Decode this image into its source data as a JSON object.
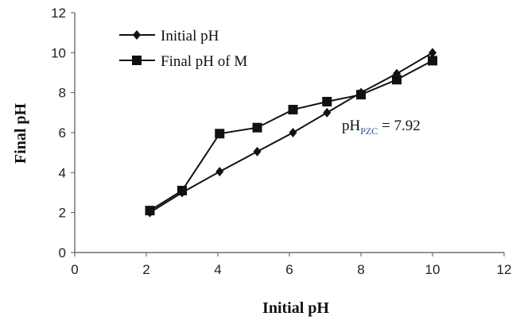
{
  "chart_data": {
    "type": "line",
    "xlabel": "Initial pH",
    "ylabel": "Final pH",
    "xlim": [
      0,
      12
    ],
    "ylim": [
      0,
      12
    ],
    "xticks": [
      0,
      2,
      4,
      6,
      8,
      10,
      12
    ],
    "yticks": [
      0,
      2,
      4,
      6,
      8,
      10,
      12
    ],
    "grid": false,
    "legend_position": "top-left",
    "series": [
      {
        "name": "Initial pH",
        "marker": "diamond",
        "color": "#111111",
        "x": [
          2.1,
          3.0,
          4.05,
          5.1,
          6.1,
          7.05,
          8.0,
          9.0,
          10.0
        ],
        "y": [
          2.0,
          3.0,
          4.05,
          5.05,
          6.0,
          7.0,
          8.0,
          8.95,
          10.0
        ]
      },
      {
        "name": "Final pH of M",
        "marker": "square",
        "color": "#111111",
        "x": [
          2.1,
          3.0,
          4.05,
          5.1,
          6.1,
          7.05,
          8.0,
          9.0,
          10.0
        ],
        "y": [
          2.1,
          3.1,
          5.95,
          6.25,
          7.15,
          7.55,
          7.9,
          8.65,
          9.6
        ]
      }
    ],
    "annotation": {
      "main": "pH",
      "subscript": "PZC",
      "value": " = 7.92"
    }
  }
}
